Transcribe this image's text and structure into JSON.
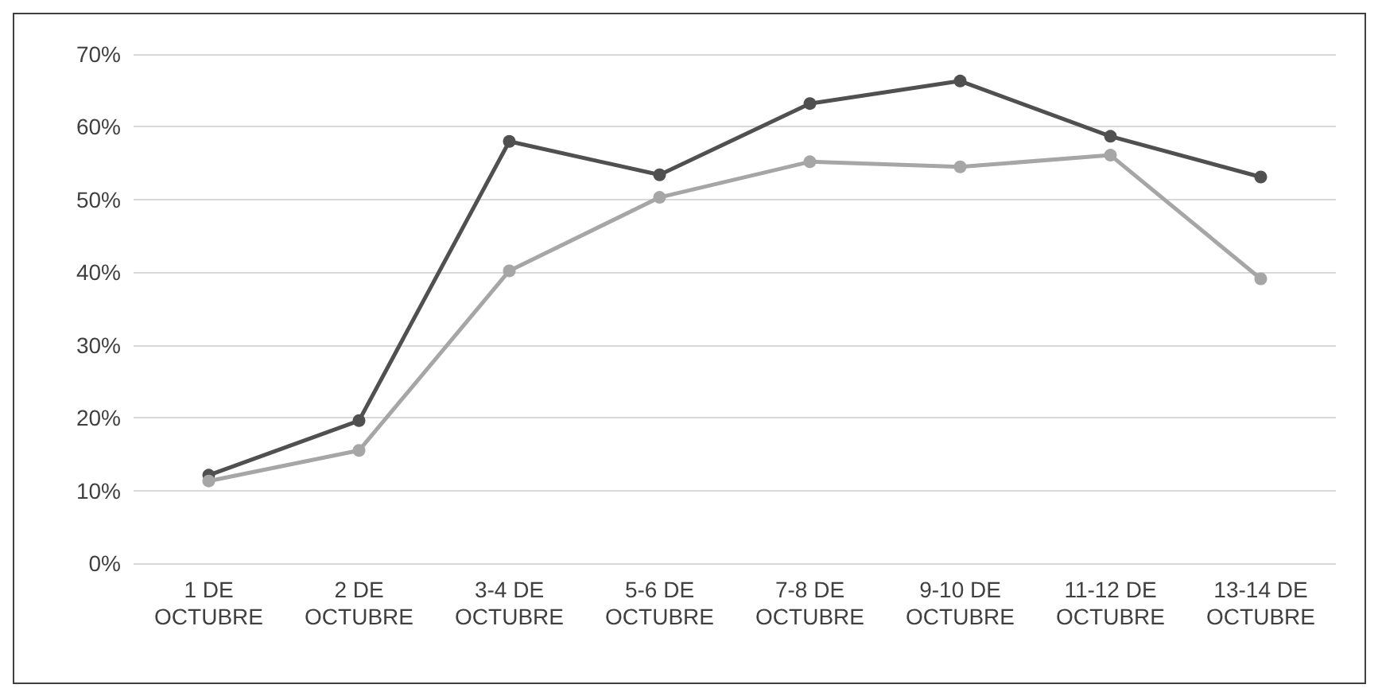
{
  "chart_data": {
    "type": "line",
    "categories": [
      "1 DE\nOCTUBRE",
      "2 DE\nOCTUBRE",
      "3-4 DE\nOCTUBRE",
      "5-6 DE\nOCTUBRE",
      "7-8 DE\nOCTUBRE",
      "9-10 DE\nOCTUBRE",
      "11-12 DE\nOCTUBRE",
      "13-14 DE\nOCTUBRE"
    ],
    "series": [
      {
        "color": "#505050",
        "values": [
          12.1,
          19.6,
          58,
          53.4,
          63.2,
          66.3,
          58.7,
          53.1
        ]
      },
      {
        "color": "#a6a6a6",
        "values": [
          11.3,
          15.5,
          40.2,
          50.3,
          55.2,
          54.5,
          56.1,
          39.1
        ]
      }
    ],
    "ylim": [
      0,
      70
    ],
    "yticks": [
      {
        "value": 0,
        "label": "0%"
      },
      {
        "value": 10,
        "label": "10%"
      },
      {
        "value": 20,
        "label": "20%"
      },
      {
        "value": 30,
        "label": "30%"
      },
      {
        "value": 40,
        "label": "40%"
      },
      {
        "value": 50,
        "label": "50%"
      },
      {
        "value": 60,
        "label": "60%"
      },
      {
        "value": 70,
        "label": "70%"
      }
    ],
    "grid": "y",
    "marker": "circle",
    "line_style": "solid"
  }
}
